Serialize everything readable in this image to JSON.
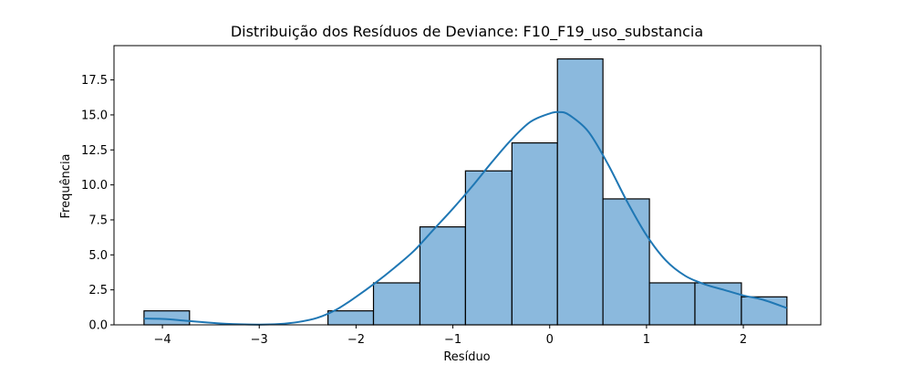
{
  "chart_data": {
    "type": "bar",
    "title": "Distribuição dos Resíduos de Deviance: F10_F19_uso_substancia",
    "xlabel": "Resíduo",
    "ylabel": "Frequência",
    "xlim": [
      -4.5,
      2.8
    ],
    "ylim": [
      0,
      19.95
    ],
    "xticks": [
      -4,
      -3,
      -2,
      -1,
      0,
      1,
      2
    ],
    "yticks": [
      0.0,
      2.5,
      5.0,
      7.5,
      10.0,
      12.5,
      15.0,
      17.5
    ],
    "xtick_labels": [
      "−4",
      "−3",
      "−2",
      "−1",
      "0",
      "1",
      "2"
    ],
    "ytick_labels": [
      "0.0",
      "2.5",
      "5.0",
      "7.5",
      "10.0",
      "12.5",
      "15.0",
      "17.5"
    ],
    "bins": [
      {
        "x0": -4.19,
        "x1": -3.72,
        "count": 1
      },
      {
        "x0": -3.72,
        "x1": -3.24,
        "count": 0
      },
      {
        "x0": -3.24,
        "x1": -2.77,
        "count": 0
      },
      {
        "x0": -2.77,
        "x1": -2.29,
        "count": 0
      },
      {
        "x0": -2.29,
        "x1": -1.82,
        "count": 1
      },
      {
        "x0": -1.82,
        "x1": -1.34,
        "count": 3
      },
      {
        "x0": -1.34,
        "x1": -0.87,
        "count": 7
      },
      {
        "x0": -0.87,
        "x1": -0.39,
        "count": 11
      },
      {
        "x0": -0.39,
        "x1": 0.08,
        "count": 13
      },
      {
        "x0": 0.08,
        "x1": 0.55,
        "count": 19
      },
      {
        "x0": 0.55,
        "x1": 1.03,
        "count": 9
      },
      {
        "x0": 1.03,
        "x1": 1.5,
        "count": 3
      },
      {
        "x0": 1.5,
        "x1": 1.98,
        "count": 3
      },
      {
        "x0": 1.98,
        "x1": 2.45,
        "count": 2
      }
    ],
    "kde": {
      "x": [
        -4.19,
        -4.0,
        -3.8,
        -3.6,
        -3.4,
        -3.2,
        -3.0,
        -2.8,
        -2.6,
        -2.4,
        -2.2,
        -2.0,
        -1.8,
        -1.6,
        -1.4,
        -1.2,
        -1.0,
        -0.8,
        -0.6,
        -0.4,
        -0.2,
        0.0,
        0.1,
        0.2,
        0.4,
        0.6,
        0.8,
        1.0,
        1.2,
        1.4,
        1.6,
        1.8,
        2.0,
        2.2,
        2.45
      ],
      "y": [
        0.45,
        0.42,
        0.32,
        0.2,
        0.1,
        0.04,
        0.02,
        0.06,
        0.2,
        0.5,
        1.1,
        2.0,
        3.0,
        4.1,
        5.3,
        6.8,
        8.3,
        9.9,
        11.6,
        13.2,
        14.5,
        15.1,
        15.2,
        15.0,
        13.8,
        11.5,
        8.8,
        6.4,
        4.6,
        3.5,
        2.9,
        2.5,
        2.1,
        1.8,
        1.2
      ]
    },
    "colors": {
      "bar_fill": "#8bb9dd",
      "bar_edge": "#000000",
      "kde_line": "#1f77b4"
    },
    "grid": false,
    "legend": "none"
  }
}
